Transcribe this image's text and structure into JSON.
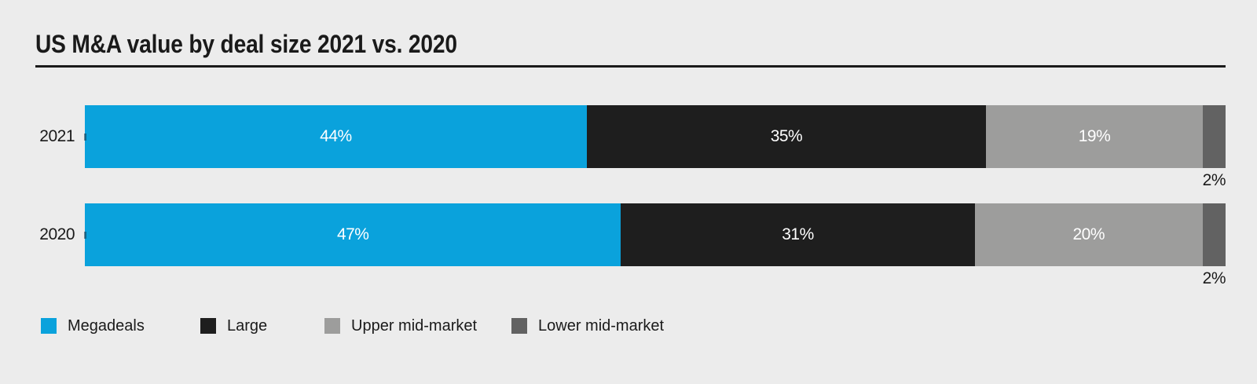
{
  "background_color": "#ececec",
  "text_color": "#1a1a1a",
  "chart_data": {
    "type": "bar",
    "orientation": "horizontal-stacked",
    "title": "US M&A value by deal size 2021 vs. 2020",
    "categories": [
      "2021",
      "2020"
    ],
    "series": [
      {
        "name": "Megadeals",
        "color": "#0aa2dc",
        "values": [
          44,
          47
        ],
        "label_position": "inside"
      },
      {
        "name": "Large",
        "color": "#1e1e1e",
        "values": [
          35,
          31
        ],
        "label_position": "inside"
      },
      {
        "name": "Upper mid-market",
        "color": "#9d9d9c",
        "values": [
          19,
          20
        ],
        "label_position": "inside"
      },
      {
        "name": "Lower mid-market",
        "color": "#626262",
        "values": [
          2,
          2
        ],
        "label_position": "below-right"
      }
    ],
    "value_suffix": "%",
    "xlim": [
      0,
      100
    ],
    "grid": false,
    "legend_position": "bottom",
    "value_label_color_inside": "#ffffff",
    "value_label_color_outside": "#1a1a1a"
  }
}
